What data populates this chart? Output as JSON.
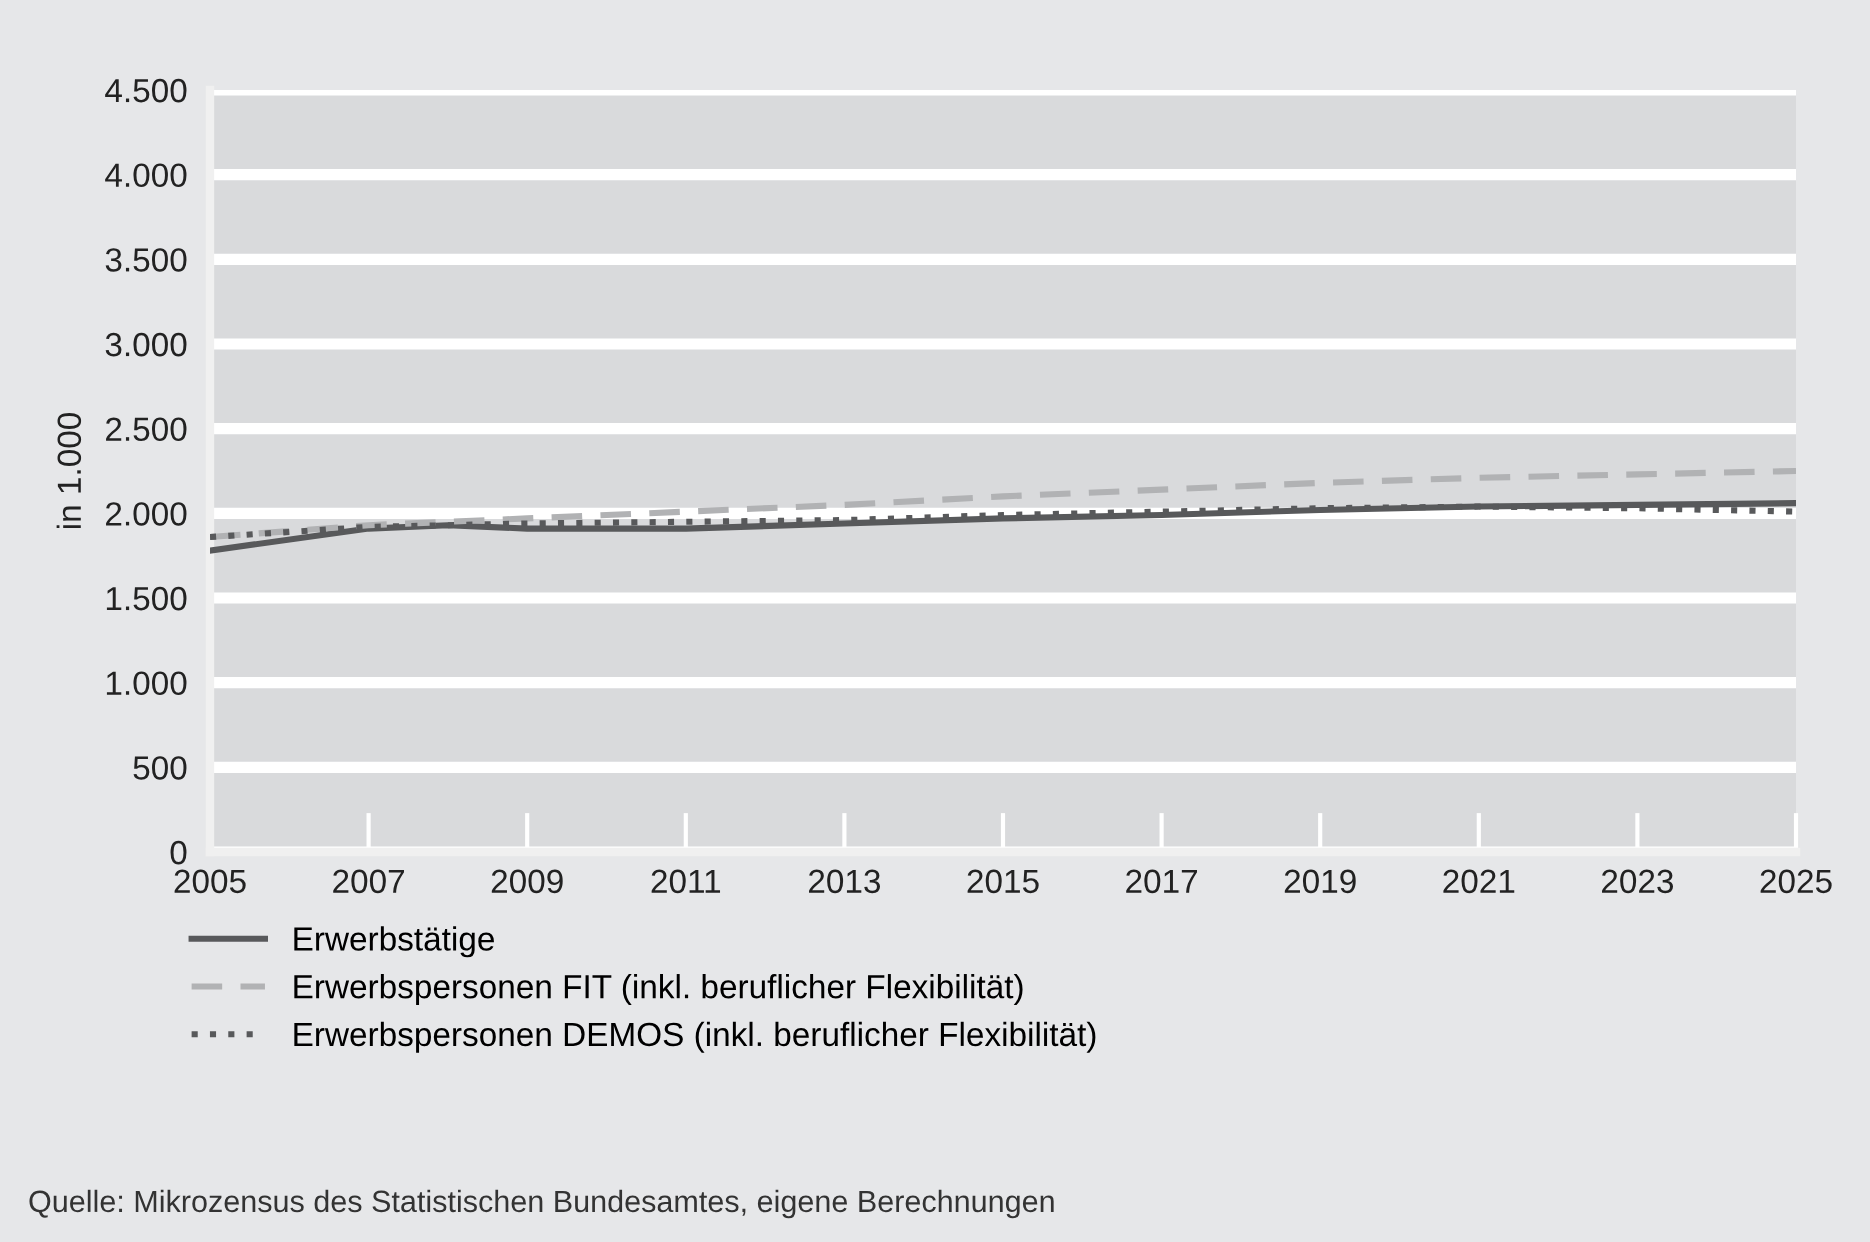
{
  "chart_data": {
    "type": "line",
    "ylabel": "in 1.000",
    "x": [
      2005,
      2007,
      2008,
      2009,
      2011,
      2013,
      2015,
      2017,
      2019,
      2021,
      2023,
      2025
    ],
    "series": [
      {
        "name": "Erwerbstätige",
        "color": "#58595b",
        "line_style": "solid",
        "values": [
          1780,
          1910,
          1930,
          1910,
          1910,
          1940,
          1970,
          1990,
          2020,
          2040,
          2050,
          2060
        ]
      },
      {
        "name": "Erwerbspersonen FIT (inkl. beruflicher Flexibilität)",
        "color": "#b1b2b4",
        "line_style": "dashed",
        "values": [
          1860,
          1930,
          1950,
          1970,
          2010,
          2050,
          2100,
          2140,
          2180,
          2210,
          2230,
          2250
        ]
      },
      {
        "name": "Erwerbspersonen DEMOS (inkl. beruflicher Flexibilität)",
        "color": "#58595b",
        "line_style": "dotted",
        "values": [
          1860,
          1920,
          1930,
          1940,
          1950,
          1960,
          1990,
          2010,
          2030,
          2040,
          2030,
          2010
        ]
      }
    ],
    "xlim": [
      2005,
      2025
    ],
    "xticks": [
      2005,
      2007,
      2009,
      2011,
      2013,
      2015,
      2017,
      2019,
      2021,
      2023,
      2025
    ],
    "ylim": [
      0,
      4500
    ],
    "yticks": [
      {
        "value": 0,
        "label": "0"
      },
      {
        "value": 500,
        "label": "500"
      },
      {
        "value": 1000,
        "label": "1.000"
      },
      {
        "value": 1500,
        "label": "1.500"
      },
      {
        "value": 2000,
        "label": "2.000"
      },
      {
        "value": 2500,
        "label": "2.500"
      },
      {
        "value": 3000,
        "label": "3.000"
      },
      {
        "value": 3500,
        "label": "3.500"
      },
      {
        "value": 4000,
        "label": "4.000"
      },
      {
        "value": 4500,
        "label": "4.500"
      }
    ],
    "grid": "y",
    "legend": "bottom left",
    "annotations": [
      "Quelle: Mikrozensus des Statistischen Bundesamtes, eigene Berechnungen"
    ]
  }
}
